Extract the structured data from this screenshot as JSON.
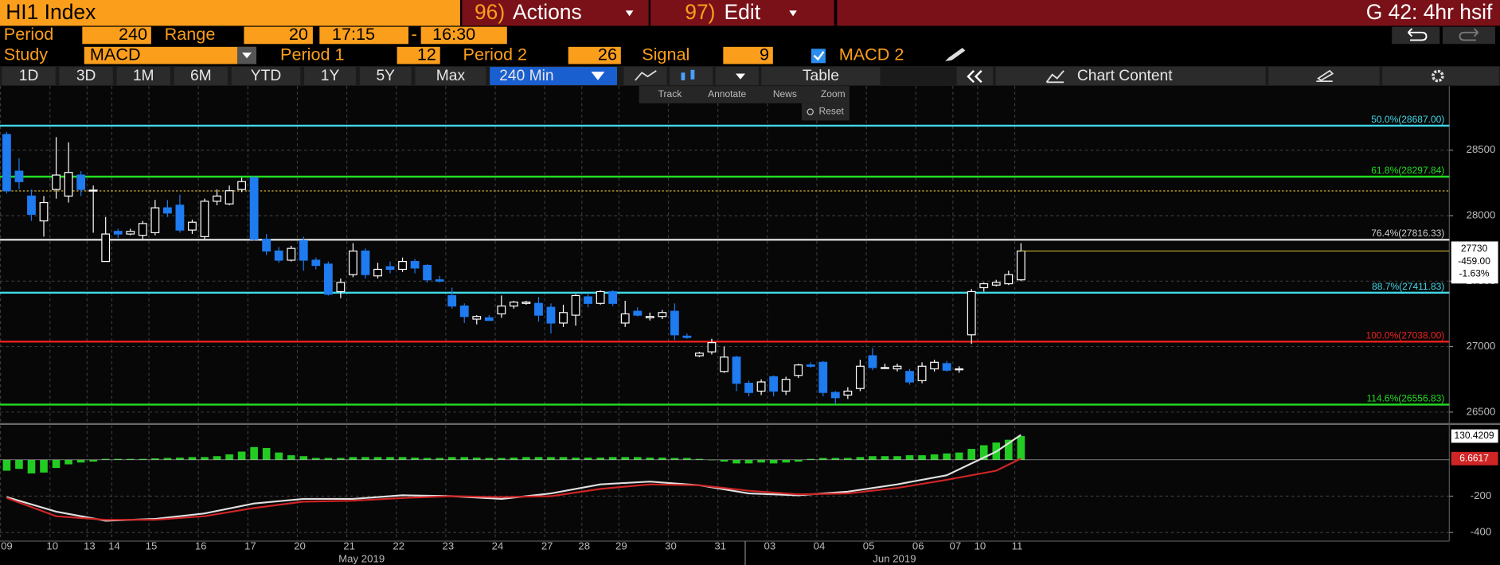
{
  "header": {
    "security": "HI1 Index",
    "actions_num": "96)",
    "actions": "Actions",
    "edit_num": "97)",
    "edit": "Edit",
    "function": "G 42: 4hr hsif"
  },
  "settings": {
    "period_label": "Period",
    "period": "240",
    "range_label": "Range",
    "range": "20",
    "start": "17:15",
    "separator": "-",
    "end": "16:30",
    "study_label": "Study",
    "study": "MACD",
    "period1_label": "Period 1",
    "period1": "12",
    "period2_label": "Period 2",
    "period2": "26",
    "signal_label": "Signal",
    "signal": "9",
    "macd2": "MACD 2"
  },
  "tabs": [
    "1D",
    "3D",
    "1M",
    "6M",
    "YTD",
    "1Y",
    "5Y",
    "Max"
  ],
  "interval": "240 Min",
  "table": "Table",
  "chart_content": "Chart Content",
  "toolbar": [
    "Track",
    "Annotate",
    "News",
    "Zoom",
    "Reset"
  ],
  "chart_data": {
    "type": "candlestick",
    "categories": [
      "09",
      null,
      null,
      null,
      "10",
      null,
      null,
      "13",
      null,
      "14",
      null,
      null,
      "15",
      null,
      null,
      null,
      "16",
      null,
      null,
      null,
      "17",
      null,
      null,
      null,
      "20",
      null,
      null,
      null,
      "21",
      null,
      null,
      null,
      "22",
      null,
      null,
      null,
      "23",
      null,
      null,
      null,
      "24",
      null,
      null,
      null,
      "27",
      null,
      null,
      "28",
      null,
      null,
      "29",
      null,
      null,
      null,
      "30",
      null,
      null,
      null,
      "31",
      null,
      null,
      null,
      "03",
      null,
      null,
      null,
      "04",
      null,
      null,
      null,
      "05",
      null,
      null,
      null,
      "06",
      null,
      null,
      "07",
      null,
      "10",
      null,
      null,
      "11"
    ],
    "months": [
      "May 2019",
      "Jun 2019"
    ],
    "open": [
      28620,
      28340,
      28150,
      27960,
      28200,
      28150,
      28310,
      28190,
      27650,
      27880,
      27860,
      27850,
      27870,
      28060,
      28080,
      27890,
      27840,
      28110,
      28090,
      28200,
      28290,
      27820,
      27730,
      27660,
      27810,
      27660,
      27630,
      27420,
      27550,
      27730,
      27540,
      27610,
      27590,
      27650,
      27620,
      27510,
      27390,
      27310,
      27210,
      27220,
      27250,
      27310,
      27330,
      27330,
      27300,
      27180,
      27240,
      27380,
      27330,
      27420,
      27180,
      27270,
      27220,
      27230,
      27270,
      27080,
      26930,
      26960,
      26810,
      26920,
      26720,
      26660,
      26770,
      26660,
      26780,
      26860,
      26880,
      26650,
      26630,
      26680,
      26930,
      26840,
      26830,
      26810,
      26740,
      26830,
      26870,
      26830,
      27090,
      27450,
      27470,
      27480,
      27510
    ],
    "high": [
      28640,
      28440,
      28200,
      28150,
      28600,
      28560,
      28340,
      28230,
      27990,
      27900,
      27900,
      27960,
      28120,
      28120,
      28160,
      27970,
      28130,
      28200,
      28230,
      28290,
      28300,
      27860,
      27760,
      27770,
      27840,
      27680,
      27650,
      27520,
      27790,
      27750,
      27640,
      27650,
      27680,
      27670,
      27630,
      27540,
      27450,
      27330,
      27240,
      27240,
      27390,
      27350,
      27350,
      27380,
      27330,
      27320,
      27400,
      27410,
      27430,
      27430,
      27350,
      27300,
      27260,
      27280,
      27330,
      27100,
      26960,
      27060,
      27000,
      26930,
      26740,
      26750,
      26780,
      26770,
      26870,
      26880,
      26890,
      26660,
      26690,
      26900,
      26990,
      26870,
      26870,
      26830,
      26880,
      26900,
      26890,
      26850,
      27440,
      27490,
      27510,
      27580,
      27790
    ],
    "low": [
      28170,
      28200,
      27960,
      27840,
      28130,
      28100,
      28150,
      27870,
      27650,
      27830,
      27850,
      27820,
      27850,
      27990,
      27870,
      27860,
      27820,
      28080,
      28080,
      28180,
      27810,
      27700,
      27640,
      27650,
      27580,
      27590,
      27390,
      27370,
      27530,
      27520,
      27520,
      27560,
      27570,
      27560,
      27490,
      27490,
      27290,
      27180,
      27170,
      27200,
      27220,
      27290,
      27320,
      27190,
      27100,
      27150,
      27160,
      27300,
      27320,
      27310,
      27150,
      27230,
      27200,
      27210,
      27050,
      27060,
      26920,
      26940,
      26800,
      26660,
      26620,
      26630,
      26620,
      26630,
      26760,
      26840,
      26620,
      26560,
      26600,
      26660,
      26820,
      26830,
      26810,
      26710,
      26720,
      26810,
      26810,
      26800,
      27020,
      27420,
      27460,
      27470,
      27500
    ],
    "close": [
      28190,
      28260,
      28010,
      28100,
      28310,
      28330,
      28200,
      28195,
      27860,
      27860,
      27880,
      27940,
      28060,
      28020,
      27890,
      27950,
      28110,
      28150,
      28190,
      28260,
      27820,
      27730,
      27660,
      27750,
      27660,
      27620,
      27400,
      27490,
      27730,
      27550,
      27590,
      27590,
      27650,
      27600,
      27510,
      27500,
      27310,
      27230,
      27230,
      27200,
      27310,
      27340,
      27340,
      27240,
      27180,
      27260,
      27390,
      27330,
      27420,
      27330,
      27250,
      27240,
      27230,
      27260,
      27090,
      27070,
      26950,
      27030,
      26920,
      26720,
      26650,
      26730,
      26660,
      26750,
      26860,
      26850,
      26650,
      26610,
      26660,
      26850,
      26840,
      26840,
      26850,
      26730,
      26850,
      26880,
      26820,
      26830,
      27420,
      27480,
      27490,
      27550,
      27730
    ],
    "up_color": "#ffffff",
    "down_color": "#1e7bf0",
    "ylim": [
      26420,
      28990
    ],
    "yticks": [
      26500,
      27000,
      27500,
      28000,
      28500
    ],
    "grid": true,
    "previous_close": 28189,
    "last": {
      "change": "-459.00",
      "change_pct": "-1.63%"
    },
    "levels": [
      {
        "label": "50.0%(28687.00)",
        "value": 28687,
        "color": "#40d8e8"
      },
      {
        "label": "61.8%(28297.84)",
        "value": 28297.84,
        "color": "#22dd22"
      },
      {
        "label": "76.4%(27816.33)",
        "value": 27816.33,
        "color": "#cfcfcf"
      },
      {
        "label": "88.7%(27411.83)",
        "value": 27411.83,
        "color": "#40d8e8"
      },
      {
        "label": "100.0%(27038.00)",
        "value": 27038,
        "color": "#ee2020"
      },
      {
        "label": "114.6%(26556.83)",
        "value": 26556.83,
        "color": "#22dd22"
      }
    ],
    "macd": {
      "ylim": [
        -447,
        189
      ],
      "yticks": [
        -400,
        -200
      ],
      "histogram": {
        "color": "#22cc22",
        "values": [
          -60,
          -50,
          -75,
          -70,
          -45,
          -25,
          -15,
          -10,
          5,
          5,
          5,
          5,
          8,
          10,
          12,
          15,
          15,
          20,
          30,
          45,
          70,
          65,
          40,
          25,
          20,
          10,
          10,
          10,
          15,
          15,
          15,
          15,
          15,
          12,
          10,
          10,
          15,
          15,
          12,
          10,
          10,
          12,
          15,
          15,
          15,
          15,
          12,
          12,
          12,
          15,
          15,
          15,
          12,
          12,
          10,
          10,
          5,
          0,
          -10,
          -20,
          -20,
          -15,
          -20,
          -15,
          -10,
          5,
          10,
          10,
          10,
          15,
          20,
          20,
          20,
          25,
          25,
          30,
          35,
          40,
          60,
          80,
          95,
          110,
          130.4209
        ]
      },
      "x": [
        0,
        4,
        8,
        12,
        16,
        20,
        24,
        28,
        32,
        36,
        40,
        44,
        48,
        52,
        56,
        60,
        64,
        68,
        72,
        76,
        80,
        82
      ],
      "series": [
        {
          "color": "#e0e0e0",
          "values": [
            -205,
            -285,
            -335,
            -325,
            -295,
            -240,
            -215,
            -215,
            -195,
            -200,
            -215,
            -185,
            -135,
            -120,
            -140,
            -185,
            -195,
            -175,
            -135,
            -85,
            45,
            137.0826
          ]
        },
        {
          "color": "#d02525",
          "values": [
            -210,
            -310,
            -330,
            -330,
            -310,
            -265,
            -230,
            -225,
            -210,
            -200,
            -205,
            -200,
            -160,
            -135,
            -140,
            -170,
            -190,
            -185,
            -155,
            -110,
            -60,
            6.6617
          ]
        }
      ]
    }
  }
}
